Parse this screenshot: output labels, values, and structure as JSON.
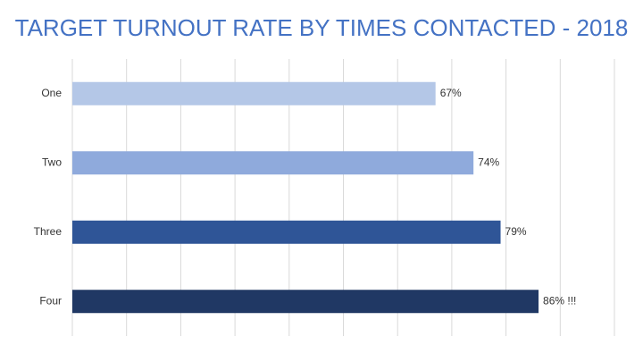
{
  "chart_data": {
    "type": "bar",
    "orientation": "horizontal",
    "title": "TARGET TURNOUT RATE BY TIMES CONTACTED - 2018",
    "categories": [
      "One",
      "Two",
      "Three",
      "Four"
    ],
    "values": [
      67,
      74,
      79,
      86
    ],
    "value_labels": [
      "67%",
      "74%",
      "79%",
      "86% !!!"
    ],
    "colors": [
      "#b4c7e7",
      "#8faadc",
      "#2f5597",
      "#203864"
    ],
    "xlim": [
      0,
      100
    ],
    "xticks": [
      0,
      10,
      20,
      30,
      40,
      50,
      60,
      70,
      80,
      90,
      100
    ],
    "grid": true
  }
}
